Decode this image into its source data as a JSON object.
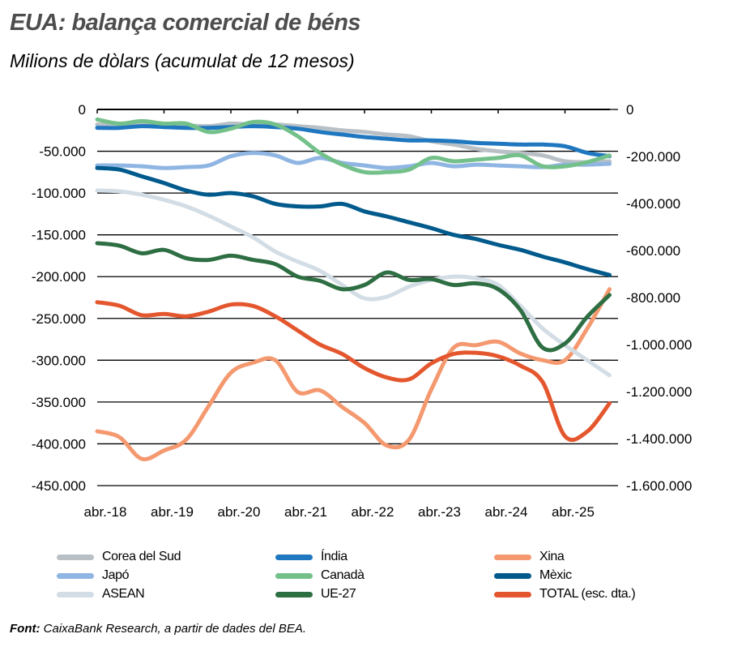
{
  "header": {
    "title": "EUA: balança comercial de béns",
    "subtitle": "Milions de dòlars (acumulat de 12 mesos)"
  },
  "footer": {
    "source_label": "Font:",
    "source_text": " CaixaBank Research, a partir de dades del BEA."
  },
  "chart_data": {
    "type": "line",
    "title": "EUA: balança comercial de béns",
    "subtitle": "Milions de dòlars (acumulat de 12 mesos)",
    "xlabel": "",
    "ylabel": "",
    "x_ticks": [
      "abr.-18",
      "abr.-19",
      "abr.-20",
      "abr.-21",
      "abr.-22",
      "abr.-23",
      "abr.-24",
      "abr.-25"
    ],
    "y_left": {
      "ticks": [
        "0",
        "-50.000",
        "-100.000",
        "-150.000",
        "-200.000",
        "-250.000",
        "-300.000",
        "-350.000",
        "-400.000",
        "-450.000"
      ],
      "ylim": [
        -450000,
        0
      ]
    },
    "y_right": {
      "ticks": [
        "0",
        "-200.000",
        "-400.000",
        "-600.000",
        "-800.000",
        "-1.000.000",
        "-1.200.000",
        "-1.400.000",
        "-1.600.000"
      ],
      "ylim": [
        -1600000,
        0
      ]
    },
    "grid": true,
    "legend_position": "bottom",
    "x_months_from_apr18": [
      0,
      4,
      8,
      12,
      16,
      20,
      24,
      28,
      32,
      36,
      40,
      44,
      48,
      52,
      56,
      60,
      64,
      68,
      72,
      76,
      80,
      84,
      88,
      92
    ],
    "series": [
      {
        "name": "Corea del Sud",
        "axis": "left",
        "color": "#b8c0c6",
        "values": [
          -18000,
          -19000,
          -17000,
          -18000,
          -19000,
          -20000,
          -17000,
          -18000,
          -18000,
          -20000,
          -22000,
          -25000,
          -27000,
          -30000,
          -32000,
          -38000,
          -42000,
          -47000,
          -50000,
          -52000,
          -55000,
          -62000,
          -63000,
          -62000
        ]
      },
      {
        "name": "Índia",
        "axis": "left",
        "color": "#1f77c0",
        "values": [
          -22000,
          -22000,
          -20000,
          -21000,
          -22000,
          -22000,
          -21000,
          -20000,
          -21000,
          -23000,
          -27000,
          -30000,
          -33000,
          -35000,
          -37000,
          -37000,
          -38000,
          -40000,
          -41000,
          -42000,
          -42000,
          -44000,
          -52000,
          -56000
        ]
      },
      {
        "name": "Xina",
        "axis": "left",
        "color": "#f4996f",
        "values": [
          -385000,
          -392000,
          -418000,
          -408000,
          -395000,
          -355000,
          -315000,
          -303000,
          -300000,
          -338000,
          -336000,
          -356000,
          -375000,
          -402000,
          -395000,
          -335000,
          -285000,
          -282000,
          -278000,
          -292000,
          -300000,
          -300000,
          -262000,
          -215000
        ]
      },
      {
        "name": "Japó",
        "axis": "left",
        "color": "#8fb5e3",
        "values": [
          -67000,
          -67000,
          -68000,
          -70000,
          -69000,
          -67000,
          -56000,
          -52000,
          -55000,
          -64000,
          -58000,
          -64000,
          -67000,
          -70000,
          -68000,
          -64000,
          -68000,
          -66000,
          -67000,
          -68000,
          -69000,
          -66000,
          -66000,
          -65000
        ]
      },
      {
        "name": "Canadà",
        "axis": "left",
        "color": "#74c08a",
        "values": [
          -12000,
          -17000,
          -14000,
          -17000,
          -17000,
          -27000,
          -23000,
          -15000,
          -18000,
          -32000,
          -52000,
          -66000,
          -75000,
          -75000,
          -72000,
          -58000,
          -62000,
          -60000,
          -58000,
          -55000,
          -68000,
          -68000,
          -63000,
          -55000
        ]
      },
      {
        "name": "Mèxic",
        "axis": "left",
        "color": "#005a8c",
        "values": [
          -70000,
          -72000,
          -80000,
          -88000,
          -97000,
          -102000,
          -100000,
          -104000,
          -113000,
          -116000,
          -116000,
          -113000,
          -122000,
          -128000,
          -135000,
          -142000,
          -150000,
          -155000,
          -162000,
          -168000,
          -176000,
          -183000,
          -191000,
          -198000
        ]
      },
      {
        "name": "ASEAN",
        "axis": "left",
        "color": "#d3dde5",
        "values": [
          -97000,
          -98000,
          -102000,
          -108000,
          -116000,
          -127000,
          -140000,
          -153000,
          -170000,
          -182000,
          -193000,
          -210000,
          -226000,
          -224000,
          -212000,
          -204000,
          -200000,
          -202000,
          -210000,
          -235000,
          -262000,
          -282000,
          -300000,
          -318000
        ]
      },
      {
        "name": "UE-27",
        "axis": "left",
        "color": "#2e6e43",
        "values": [
          -160000,
          -163000,
          -172000,
          -168000,
          -178000,
          -180000,
          -175000,
          -180000,
          -185000,
          -200000,
          -205000,
          -215000,
          -210000,
          -195000,
          -204000,
          -203000,
          -210000,
          -208000,
          -215000,
          -240000,
          -285000,
          -280000,
          -248000,
          -222000
        ]
      },
      {
        "name": "TOTAL (esc. dta.)",
        "axis": "right",
        "color": "#e4572e",
        "values": [
          -820000,
          -835000,
          -875000,
          -870000,
          -880000,
          -860000,
          -830000,
          -836000,
          -880000,
          -940000,
          -1000000,
          -1040000,
          -1100000,
          -1140000,
          -1148000,
          -1080000,
          -1040000,
          -1035000,
          -1050000,
          -1090000,
          -1160000,
          -1390000,
          -1370000,
          -1250000
        ]
      }
    ]
  },
  "legend": {
    "items": [
      {
        "label": "Corea del Sud",
        "color": "#b8c0c6"
      },
      {
        "label": "Índia",
        "color": "#1f77c0"
      },
      {
        "label": "Xina",
        "color": "#f4996f"
      },
      {
        "label": "Japó",
        "color": "#8fb5e3"
      },
      {
        "label": "Canadà",
        "color": "#74c08a"
      },
      {
        "label": "Mèxic",
        "color": "#005a8c"
      },
      {
        "label": "ASEAN",
        "color": "#d3dde5"
      },
      {
        "label": "UE-27",
        "color": "#2e6e43"
      },
      {
        "label": "TOTAL (esc. dta.)",
        "color": "#e4572e"
      }
    ]
  }
}
